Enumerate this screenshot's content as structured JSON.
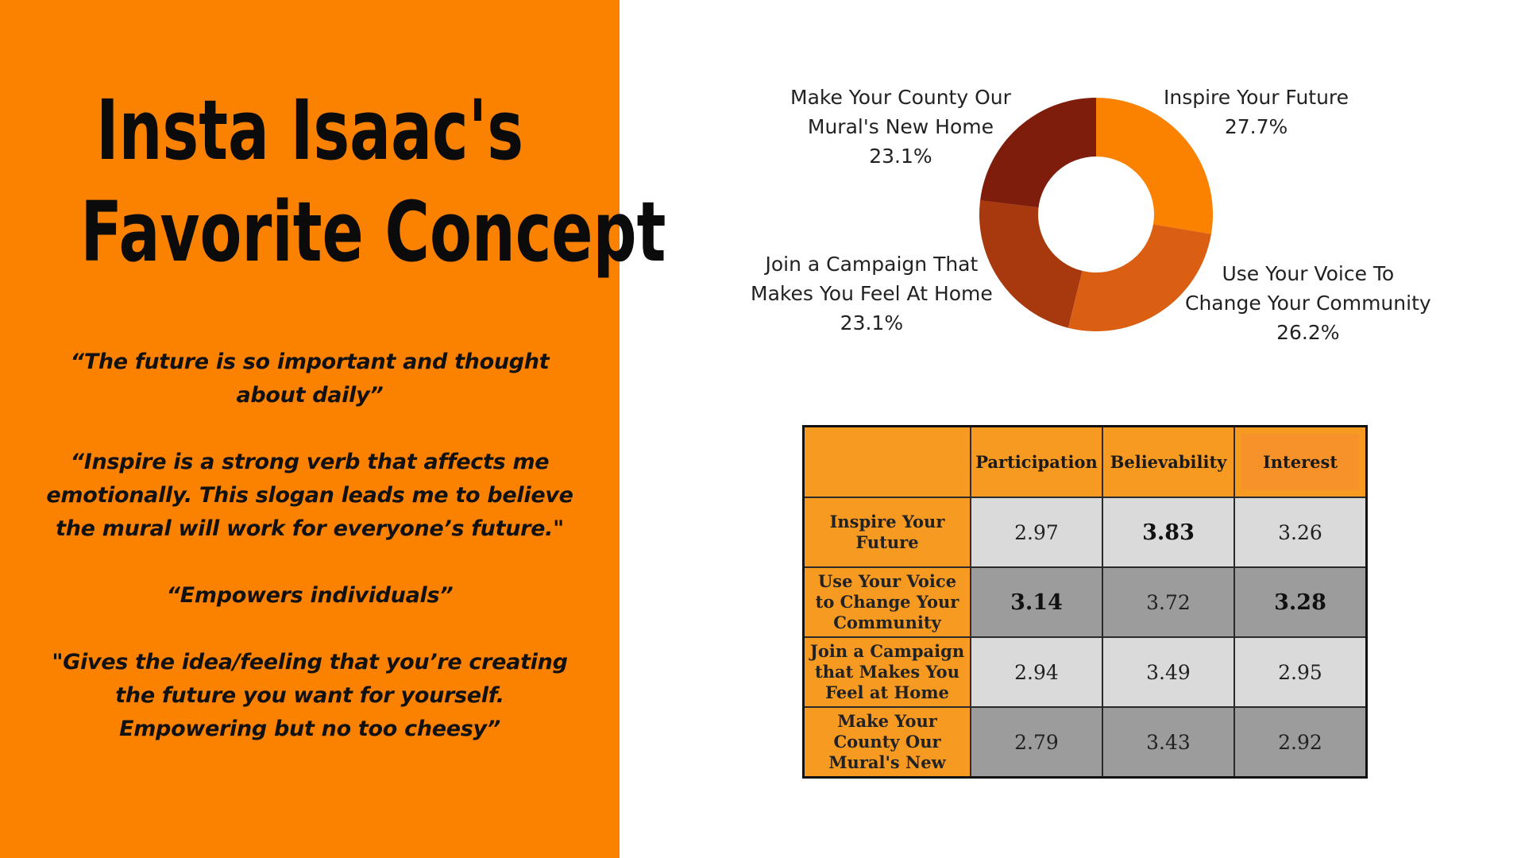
{
  "title": {
    "line1": "Insta Isaac's",
    "line2": "Favorite Concept"
  },
  "quotes": [
    {
      "lines": [
        "“The future is so important and thought",
        "about daily”"
      ]
    },
    {
      "lines": [
        "“Inspire is a strong verb that affects me",
        "emotionally. This slogan leads me to believe",
        "the mural will work for everyone’s future.\""
      ]
    },
    {
      "lines": [
        "“Empowers individuals”"
      ]
    },
    {
      "lines": [
        "\"Gives the idea/feeling that you’re creating",
        "the future you want for yourself.",
        "Empowering but no too cheesy”"
      ]
    }
  ],
  "chart_data": [
    {
      "type": "pie",
      "donut": true,
      "slices": [
        {
          "label_lines": [
            "Inspire Your Future"
          ],
          "value": 27.7,
          "value_label": "27.7%",
          "color": "#fb8200"
        },
        {
          "label_lines": [
            "Use Your Voice To",
            "Change Your Community"
          ],
          "value": 26.2,
          "value_label": "26.2%",
          "color": "#db5f12"
        },
        {
          "label_lines": [
            "Join a Campaign That",
            "Makes You Feel At Home"
          ],
          "value": 23.1,
          "value_label": "23.1%",
          "color": "#a8380e"
        },
        {
          "label_lines": [
            "Make Your County Our",
            "Mural's New Home"
          ],
          "value": 23.1,
          "value_label": "23.1%",
          "color": "#7f1d0d"
        }
      ]
    },
    {
      "type": "table",
      "columns": [
        "",
        "Participation",
        "Believability",
        "Interest"
      ],
      "rows": [
        {
          "label_lines": [
            "Inspire Your",
            "Future"
          ],
          "values": [
            "2.97",
            "3.83",
            "3.26"
          ],
          "bold": [
            false,
            true,
            false
          ],
          "shade": "light"
        },
        {
          "label_lines": [
            "Use Your Voice",
            "to Change Your",
            "Community"
          ],
          "values": [
            "3.14",
            "3.72",
            "3.28"
          ],
          "bold": [
            true,
            false,
            true
          ],
          "shade": "dark"
        },
        {
          "label_lines": [
            "Join a Campaign",
            "that Makes You",
            "Feel at Home"
          ],
          "values": [
            "2.94",
            "3.49",
            "2.95"
          ],
          "bold": [
            false,
            false,
            false
          ],
          "shade": "light"
        },
        {
          "label_lines": [
            "Make Your",
            "County Our",
            "Mural's New"
          ],
          "values": [
            "2.79",
            "3.43",
            "2.92"
          ],
          "bold": [
            false,
            false,
            false
          ],
          "shade": "dark"
        }
      ]
    }
  ]
}
